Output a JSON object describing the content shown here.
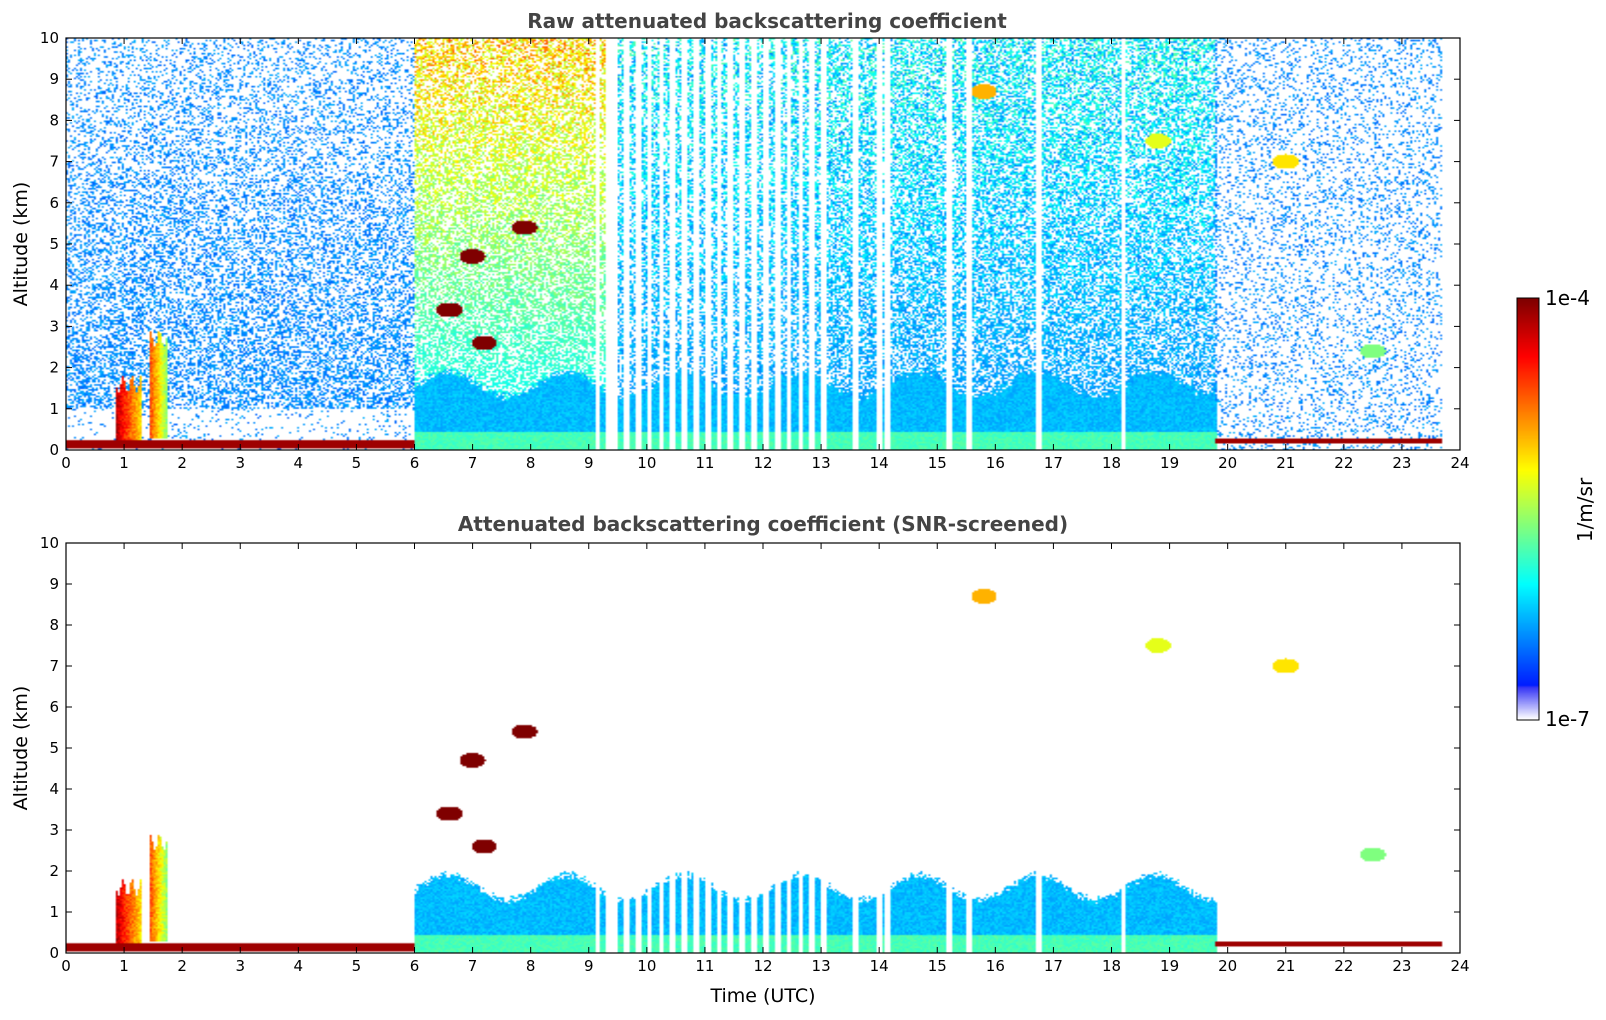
{
  "chart_data": [
    {
      "type": "heatmap",
      "title": "Raw attenuated backscattering coefficient",
      "ylabel": "Altitude (km)",
      "xlabel": "",
      "xlim": [
        0,
        24
      ],
      "ylim": [
        0,
        10
      ],
      "x_ticks": [
        "0",
        "1",
        "2",
        "3",
        "4",
        "5",
        "6",
        "7",
        "8",
        "9",
        "10",
        "11",
        "12",
        "13",
        "14",
        "15",
        "16",
        "17",
        "18",
        "19",
        "20",
        "21",
        "22",
        "23",
        "24"
      ],
      "y_ticks": [
        "0",
        "1",
        "2",
        "3",
        "4",
        "5",
        "6",
        "7",
        "8",
        "9",
        "10"
      ],
      "data_end_time": 23.7,
      "features": {
        "surface_layer": [
          {
            "t0": 0.0,
            "t1": 6.0,
            "z0": 0.05,
            "z1": 0.25,
            "level": 0.97
          },
          {
            "t0": 19.8,
            "t1": 23.7,
            "z0": 0.15,
            "z1": 0.3,
            "level": 0.97
          }
        ],
        "boundary_layer": [
          {
            "t0": 6.0,
            "t1": 19.8,
            "z_top": 2.0,
            "level": 0.3
          }
        ],
        "low_clouds": [
          {
            "t0": 0.85,
            "t1": 1.3,
            "z0": 0.1,
            "z1": 1.6,
            "level": 0.9
          },
          {
            "t0": 1.45,
            "t1": 1.75,
            "z0": 0.3,
            "z1": 2.7,
            "level": 0.75
          }
        ],
        "aloft_cloud_patches": [
          {
            "t": 6.6,
            "z": 3.4,
            "level": 1.0
          },
          {
            "t": 7.2,
            "z": 2.6,
            "level": 1.0
          },
          {
            "t": 7.0,
            "z": 4.7,
            "level": 1.0
          },
          {
            "t": 7.9,
            "z": 5.4,
            "level": 1.0
          },
          {
            "t": 15.8,
            "z": 8.7,
            "level": 0.7
          },
          {
            "t": 18.8,
            "z": 7.5,
            "level": 0.6
          },
          {
            "t": 21.0,
            "z": 7.0,
            "level": 0.65
          },
          {
            "t": 22.5,
            "z": 2.4,
            "level": 0.5
          }
        ],
        "data_gaps": [
          9.15,
          9.35,
          9.45,
          9.65,
          9.85,
          10.05,
          10.25,
          10.45,
          10.65,
          10.85,
          11.05,
          11.25,
          11.45,
          11.65,
          11.85,
          12.05,
          12.25,
          12.45,
          12.65,
          12.85,
          13.05,
          13.6,
          14.0,
          14.15,
          15.2,
          15.55,
          16.75,
          18.2
        ]
      }
    },
    {
      "type": "heatmap",
      "title": "Attenuated backscattering coefficient (SNR-screened)",
      "ylabel": "Altitude (km)",
      "xlabel": "Time (UTC)",
      "xlim": [
        0,
        24
      ],
      "ylim": [
        0,
        10
      ],
      "x_ticks": [
        "0",
        "1",
        "2",
        "3",
        "4",
        "5",
        "6",
        "7",
        "8",
        "9",
        "10",
        "11",
        "12",
        "13",
        "14",
        "15",
        "16",
        "17",
        "18",
        "19",
        "20",
        "21",
        "22",
        "23",
        "24"
      ],
      "y_ticks": [
        "0",
        "1",
        "2",
        "3",
        "4",
        "5",
        "6",
        "7",
        "8",
        "9",
        "10"
      ],
      "data_end_time": 23.7
    }
  ],
  "colorbar": {
    "label": "1/m/sr",
    "max_label": "1e-4",
    "min_label": "1e-7",
    "colormap": "jet"
  }
}
